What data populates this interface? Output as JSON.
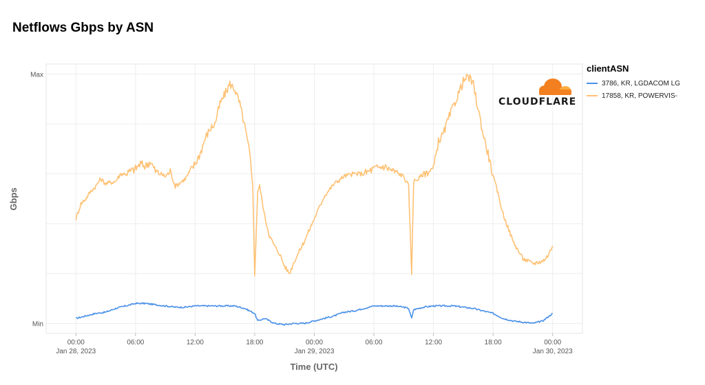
{
  "title": "Netflows Gbps by ASN",
  "logo": {
    "text": "CLOUDFLARE",
    "color": "#f38020",
    "accent": "#faad3f"
  },
  "legend": {
    "title": "clientASN",
    "items": [
      {
        "label": "3786, KR, LGDACOM LG",
        "color": "#4a90e8"
      },
      {
        "label": "17858, KR, POWERVIS-",
        "color": "#ffc174"
      }
    ]
  },
  "chart_data": {
    "type": "line",
    "xlabel": "Time (UTC)",
    "ylabel": "Gbps",
    "y_ticks": [
      "Max",
      "Min"
    ],
    "x_ticks": [
      {
        "time": "00:00",
        "date": "Jan 28, 2023",
        "h": 0
      },
      {
        "time": "06:00",
        "date": "",
        "h": 6
      },
      {
        "time": "12:00",
        "date": "",
        "h": 12
      },
      {
        "time": "18:00",
        "date": "",
        "h": 18
      },
      {
        "time": "00:00",
        "date": "Jan 29, 2023",
        "h": 24
      },
      {
        "time": "06:00",
        "date": "",
        "h": 30
      },
      {
        "time": "12:00",
        "date": "",
        "h": 36
      },
      {
        "time": "18:00",
        "date": "",
        "h": 42
      },
      {
        "time": "00:00",
        "date": "Jan 30, 2023",
        "h": 48
      }
    ],
    "xlim": [
      -3,
      51
    ],
    "ylim": [
      -0.04,
      1.04
    ],
    "grid": true,
    "series": [
      {
        "name": "3786, KR, LGDACOM LG",
        "color": "#4a90e8",
        "x": [
          0,
          1,
          2,
          3,
          4,
          5,
          6,
          7,
          8,
          9,
          10,
          11,
          12,
          13,
          14,
          15,
          16,
          17,
          17.5,
          18,
          18.3,
          19,
          20,
          21,
          22,
          23,
          24,
          25,
          26,
          27,
          28,
          29,
          30,
          31,
          32,
          33,
          33.5,
          33.8,
          34,
          35,
          36,
          37,
          38,
          39,
          40,
          41,
          42,
          43,
          44,
          45,
          46,
          47,
          48
        ],
        "y": [
          0.02,
          0.03,
          0.04,
          0.045,
          0.06,
          0.07,
          0.08,
          0.08,
          0.075,
          0.07,
          0.065,
          0.065,
          0.07,
          0.07,
          0.07,
          0.07,
          0.07,
          0.06,
          0.05,
          0.04,
          0.01,
          0.02,
          0.0,
          -0.005,
          0.0,
          0.0,
          0.01,
          0.02,
          0.03,
          0.045,
          0.05,
          0.06,
          0.07,
          0.07,
          0.07,
          0.065,
          0.06,
          0.02,
          0.055,
          0.065,
          0.07,
          0.07,
          0.07,
          0.065,
          0.06,
          0.05,
          0.04,
          0.02,
          0.01,
          0.005,
          0.0,
          0.01,
          0.04
        ]
      },
      {
        "name": "17858, KR, POWERVIS-",
        "color": "#ffc174",
        "x": [
          0,
          0.5,
          1,
          1.5,
          2,
          2.5,
          3,
          4,
          4.5,
          5,
          6,
          6.5,
          7,
          7.5,
          8,
          9,
          9.5,
          10,
          11,
          12,
          12.5,
          13,
          13.5,
          14,
          14.5,
          15,
          15.5,
          16,
          16.5,
          17,
          17.5,
          17.8,
          18.0,
          18.3,
          18.5,
          19,
          19.5,
          20,
          20.5,
          21,
          21.5,
          22,
          23,
          24,
          25,
          26,
          27,
          28,
          29,
          30,
          31,
          32,
          33,
          33.5,
          33.8,
          34,
          34.5,
          35,
          36,
          36.5,
          37,
          37.5,
          38,
          38.5,
          39,
          39.5,
          40,
          40.5,
          41,
          41.5,
          42,
          42.5,
          43,
          44,
          45,
          46,
          47,
          47.5,
          48
        ],
        "y": [
          0.42,
          0.48,
          0.5,
          0.53,
          0.55,
          0.58,
          0.56,
          0.57,
          0.6,
          0.6,
          0.62,
          0.64,
          0.63,
          0.65,
          0.61,
          0.59,
          0.61,
          0.55,
          0.58,
          0.64,
          0.68,
          0.74,
          0.78,
          0.8,
          0.88,
          0.92,
          0.96,
          0.94,
          0.88,
          0.79,
          0.68,
          0.56,
          0.19,
          0.53,
          0.55,
          0.43,
          0.35,
          0.31,
          0.28,
          0.23,
          0.2,
          0.25,
          0.33,
          0.42,
          0.51,
          0.56,
          0.59,
          0.6,
          0.6,
          0.62,
          0.63,
          0.61,
          0.59,
          0.55,
          0.2,
          0.57,
          0.58,
          0.6,
          0.62,
          0.73,
          0.76,
          0.82,
          0.87,
          0.92,
          0.97,
          0.99,
          0.96,
          0.86,
          0.76,
          0.68,
          0.59,
          0.52,
          0.44,
          0.33,
          0.26,
          0.24,
          0.25,
          0.27,
          0.31
        ]
      }
    ]
  }
}
